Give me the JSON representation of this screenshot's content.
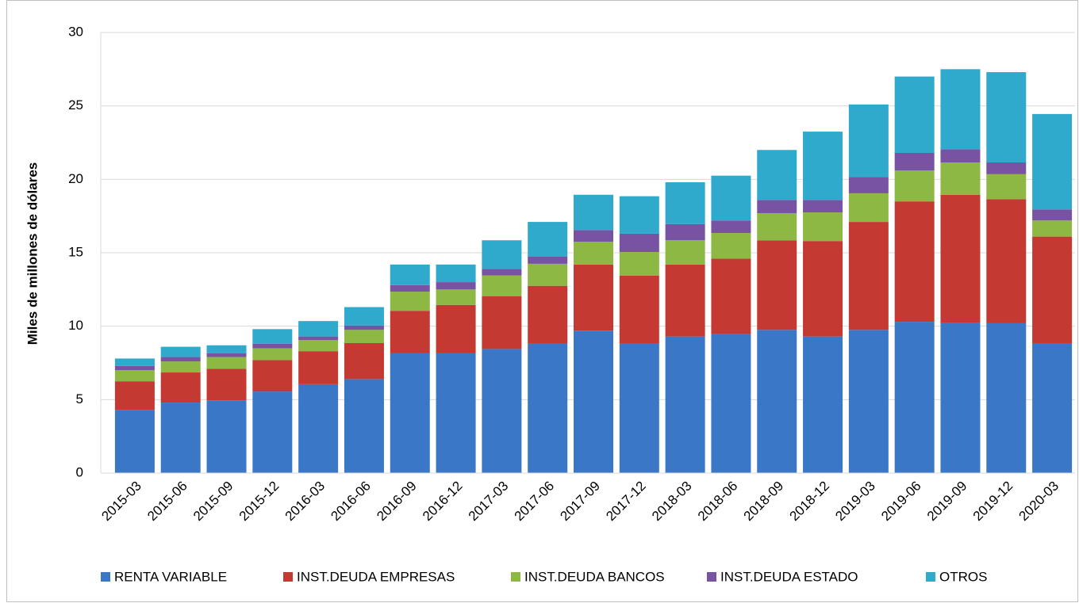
{
  "chart_data": {
    "type": "stacked_bar",
    "y_label": "Miles de millones de dólares",
    "categories": [
      "2015-03",
      "2015-06",
      "2015-09",
      "2015-12",
      "2016-03",
      "2016-06",
      "2016-09",
      "2016-12",
      "2017-03",
      "2017-06",
      "2017-09",
      "2017-12",
      "2018-03",
      "2018-06",
      "2018-09",
      "2018-12",
      "2019-03",
      "2019-06",
      "2019-09",
      "2019-12",
      "2020-03"
    ],
    "series": [
      {
        "name": "RENTA VARIABLE",
        "color": "#3a78c7",
        "values": [
          4.3,
          4.8,
          4.95,
          5.55,
          6.05,
          6.4,
          8.15,
          8.15,
          8.45,
          8.8,
          9.7,
          8.8,
          9.3,
          9.45,
          9.75,
          9.3,
          9.75,
          10.3,
          10.25,
          10.2,
          8.85
        ]
      },
      {
        "name": "INST.DEUDA EMPRESAS",
        "color": "#c43a32",
        "values": [
          1.95,
          2.05,
          2.15,
          2.15,
          2.25,
          2.45,
          2.9,
          3.3,
          3.6,
          3.95,
          4.5,
          4.65,
          4.9,
          5.15,
          6.1,
          6.5,
          7.35,
          8.2,
          8.7,
          8.45,
          7.25
        ]
      },
      {
        "name": "INST.DEUDA BANCOS",
        "color": "#8db843",
        "values": [
          0.75,
          0.75,
          0.8,
          0.8,
          0.75,
          0.9,
          1.3,
          1.05,
          1.4,
          1.5,
          1.55,
          1.6,
          1.65,
          1.75,
          1.85,
          1.95,
          1.95,
          2.1,
          2.2,
          1.7,
          1.1
        ]
      },
      {
        "name": "INST.DEUDA ESTADO",
        "color": "#7852a3",
        "values": [
          0.3,
          0.3,
          0.25,
          0.3,
          0.25,
          0.3,
          0.45,
          0.5,
          0.45,
          0.5,
          0.8,
          1.25,
          1.1,
          0.85,
          0.9,
          0.85,
          1.1,
          1.2,
          0.9,
          0.8,
          0.75
        ]
      },
      {
        "name": "OTROS",
        "color": "#2fa9cc",
        "values": [
          0.5,
          0.7,
          0.55,
          1.0,
          1.05,
          1.25,
          1.4,
          1.2,
          1.95,
          2.35,
          2.4,
          2.55,
          2.85,
          3.05,
          3.4,
          4.65,
          4.95,
          5.2,
          5.45,
          6.15,
          6.5
        ]
      }
    ],
    "ylim": [
      0,
      30
    ],
    "yticks": [
      0,
      5,
      10,
      15,
      20,
      25,
      30
    ],
    "grid": true,
    "legend": "bottom"
  }
}
